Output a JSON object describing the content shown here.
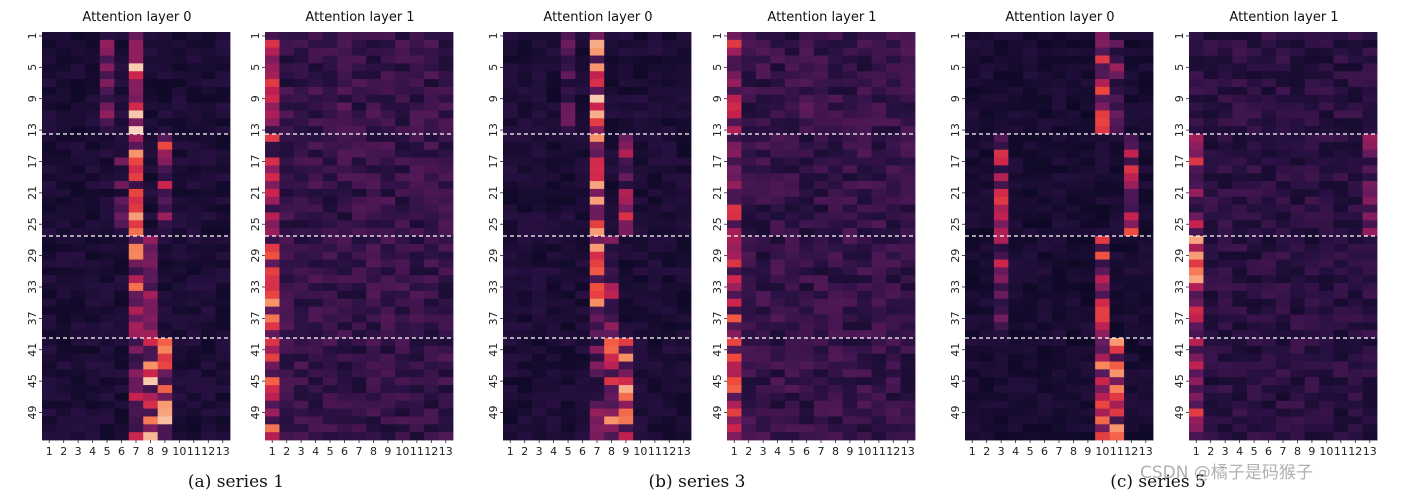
{
  "figure": {
    "watermark": "CSDN @橘子是码猴子",
    "colors": {
      "separator": "#ffffff",
      "colormap": [
        "#03051a",
        "#2a1144",
        "#5c1a5c",
        "#8d1e5d",
        "#c8214f",
        "#ee4a3d",
        "#f78a5e",
        "#f8c3a4",
        "#faebdd"
      ]
    }
  },
  "groups": [
    {
      "caption": "(a) series 1"
    },
    {
      "caption": "(b) series 3"
    },
    {
      "caption": "(c) series 5"
    }
  ],
  "chart_data": [
    {
      "type": "heatmap",
      "title": "Attention layer 0",
      "group": 0,
      "x_ticks": [
        "1",
        "2",
        "3",
        "4",
        "5",
        "6",
        "7",
        "8",
        "9",
        "10",
        "11",
        "12",
        "13"
      ],
      "y_ticks": [
        "1",
        "5",
        "9",
        "13",
        "17",
        "21",
        "25",
        "29",
        "33",
        "37",
        "41",
        "45",
        "49"
      ],
      "rows": 52,
      "cols": 13,
      "separators_after_rows": [
        13,
        26,
        39
      ],
      "pattern": {
        "base": 0.08,
        "hot": [
          {
            "cols": [
              7
            ],
            "rows": [
              1,
              13
            ],
            "v": 0.85
          },
          {
            "cols": [
              5
            ],
            "rows": [
              1,
              13
            ],
            "v": 0.35
          },
          {
            "cols": [
              6
            ],
            "rows": [
              14,
              26
            ],
            "v": 0.3
          },
          {
            "cols": [
              7
            ],
            "rows": [
              14,
              26
            ],
            "v": 0.7
          },
          {
            "cols": [
              9
            ],
            "rows": [
              14,
              26
            ],
            "v": 0.55
          },
          {
            "cols": [
              7
            ],
            "rows": [
              27,
              39
            ],
            "v": 0.65
          },
          {
            "cols": [
              8
            ],
            "rows": [
              27,
              39
            ],
            "v": 0.4
          },
          {
            "cols": [
              8,
              9
            ],
            "rows": [
              40,
              52
            ],
            "v": 0.8
          },
          {
            "cols": [
              7
            ],
            "rows": [
              40,
              52
            ],
            "v": 0.45
          }
        ]
      }
    },
    {
      "type": "heatmap",
      "title": "Attention layer 1",
      "group": 0,
      "x_ticks": [
        "1",
        "2",
        "3",
        "4",
        "5",
        "6",
        "7",
        "8",
        "9",
        "10",
        "11",
        "12",
        "13"
      ],
      "y_ticks": [
        "1",
        "5",
        "9",
        "13",
        "17",
        "21",
        "25",
        "29",
        "33",
        "37",
        "41",
        "45",
        "49"
      ],
      "rows": 52,
      "cols": 13,
      "separators_after_rows": [
        13,
        26,
        39
      ],
      "pattern": {
        "base": 0.15,
        "hot": [
          {
            "cols": [
              1
            ],
            "rows": [
              1,
              26
            ],
            "v": 0.55
          },
          {
            "cols": [
              1
            ],
            "rows": [
              27,
              39
            ],
            "v": 0.7
          },
          {
            "cols": [
              1
            ],
            "rows": [
              40,
              52
            ],
            "v": 0.65
          },
          {
            "cols": [
              6,
              9
            ],
            "rows": [
              1,
              13
            ],
            "v": 0.25
          }
        ]
      }
    },
    {
      "type": "heatmap",
      "title": "Attention layer 0",
      "group": 1,
      "x_ticks": [
        "1",
        "2",
        "3",
        "4",
        "5",
        "6",
        "7",
        "8",
        "9",
        "10",
        "11",
        "12",
        "13"
      ],
      "y_ticks": [
        "1",
        "5",
        "9",
        "13",
        "17",
        "21",
        "25",
        "29",
        "33",
        "37",
        "41",
        "45",
        "49"
      ],
      "rows": 52,
      "cols": 13,
      "separators_after_rows": [
        13,
        26,
        39
      ],
      "pattern": {
        "base": 0.08,
        "hot": [
          {
            "cols": [
              7
            ],
            "rows": [
              1,
              13
            ],
            "v": 0.8
          },
          {
            "cols": [
              5
            ],
            "rows": [
              1,
              13
            ],
            "v": 0.35
          },
          {
            "cols": [
              7
            ],
            "rows": [
              14,
              26
            ],
            "v": 0.75
          },
          {
            "cols": [
              9
            ],
            "rows": [
              14,
              26
            ],
            "v": 0.5
          },
          {
            "cols": [
              7
            ],
            "rows": [
              27,
              39
            ],
            "v": 0.7
          },
          {
            "cols": [
              8
            ],
            "rows": [
              27,
              39
            ],
            "v": 0.45
          },
          {
            "cols": [
              8,
              9
            ],
            "rows": [
              40,
              52
            ],
            "v": 0.8
          },
          {
            "cols": [
              7
            ],
            "rows": [
              40,
              52
            ],
            "v": 0.4
          }
        ]
      }
    },
    {
      "type": "heatmap",
      "title": "Attention layer 1",
      "group": 1,
      "x_ticks": [
        "1",
        "2",
        "3",
        "4",
        "5",
        "6",
        "7",
        "8",
        "9",
        "10",
        "11",
        "12",
        "13"
      ],
      "y_ticks": [
        "1",
        "5",
        "9",
        "13",
        "17",
        "21",
        "25",
        "29",
        "33",
        "37",
        "41",
        "45",
        "49"
      ],
      "rows": 52,
      "cols": 13,
      "separators_after_rows": [
        13,
        26,
        39
      ],
      "pattern": {
        "base": 0.15,
        "hot": [
          {
            "cols": [
              1
            ],
            "rows": [
              1,
              26
            ],
            "v": 0.5
          },
          {
            "cols": [
              1
            ],
            "rows": [
              27,
              39
            ],
            "v": 0.6
          },
          {
            "cols": [
              1
            ],
            "rows": [
              40,
              52
            ],
            "v": 0.6
          },
          {
            "cols": [
              6
            ],
            "rows": [
              1,
              13
            ],
            "v": 0.25
          }
        ]
      }
    },
    {
      "type": "heatmap",
      "title": "Attention layer 0",
      "group": 2,
      "x_ticks": [
        "1",
        "2",
        "3",
        "4",
        "5",
        "6",
        "7",
        "8",
        "9",
        "10",
        "11",
        "12",
        "13"
      ],
      "y_ticks": [
        "1",
        "5",
        "9",
        "13",
        "17",
        "21",
        "25",
        "29",
        "33",
        "37",
        "41",
        "45",
        "49"
      ],
      "rows": 52,
      "cols": 13,
      "separators_after_rows": [
        13,
        26,
        39
      ],
      "pattern": {
        "base": 0.07,
        "hot": [
          {
            "cols": [
              10
            ],
            "rows": [
              1,
              13
            ],
            "v": 0.55
          },
          {
            "cols": [
              11
            ],
            "rows": [
              1,
              13
            ],
            "v": 0.35
          },
          {
            "cols": [
              3
            ],
            "rows": [
              14,
              26
            ],
            "v": 0.5
          },
          {
            "cols": [
              12
            ],
            "rows": [
              14,
              26
            ],
            "v": 0.55
          },
          {
            "cols": [
              3
            ],
            "rows": [
              27,
              39
            ],
            "v": 0.45
          },
          {
            "cols": [
              10
            ],
            "rows": [
              27,
              39
            ],
            "v": 0.6
          },
          {
            "cols": [
              10,
              11
            ],
            "rows": [
              40,
              52
            ],
            "v": 0.75
          }
        ]
      }
    },
    {
      "type": "heatmap",
      "title": "Attention layer 1",
      "group": 2,
      "x_ticks": [
        "1",
        "2",
        "3",
        "4",
        "5",
        "6",
        "7",
        "8",
        "9",
        "10",
        "11",
        "12",
        "13"
      ],
      "y_ticks": [
        "1",
        "5",
        "9",
        "13",
        "17",
        "21",
        "25",
        "29",
        "33",
        "37",
        "41",
        "45",
        "49"
      ],
      "rows": 52,
      "cols": 13,
      "separators_after_rows": [
        13,
        26,
        39
      ],
      "pattern": {
        "base": 0.12,
        "hot": [
          {
            "cols": [
              1
            ],
            "rows": [
              14,
              26
            ],
            "v": 0.5
          },
          {
            "cols": [
              1
            ],
            "rows": [
              27,
              39
            ],
            "v": 0.75
          },
          {
            "cols": [
              1
            ],
            "rows": [
              40,
              52
            ],
            "v": 0.55
          },
          {
            "cols": [
              13
            ],
            "rows": [
              14,
              26
            ],
            "v": 0.35
          }
        ]
      }
    }
  ]
}
